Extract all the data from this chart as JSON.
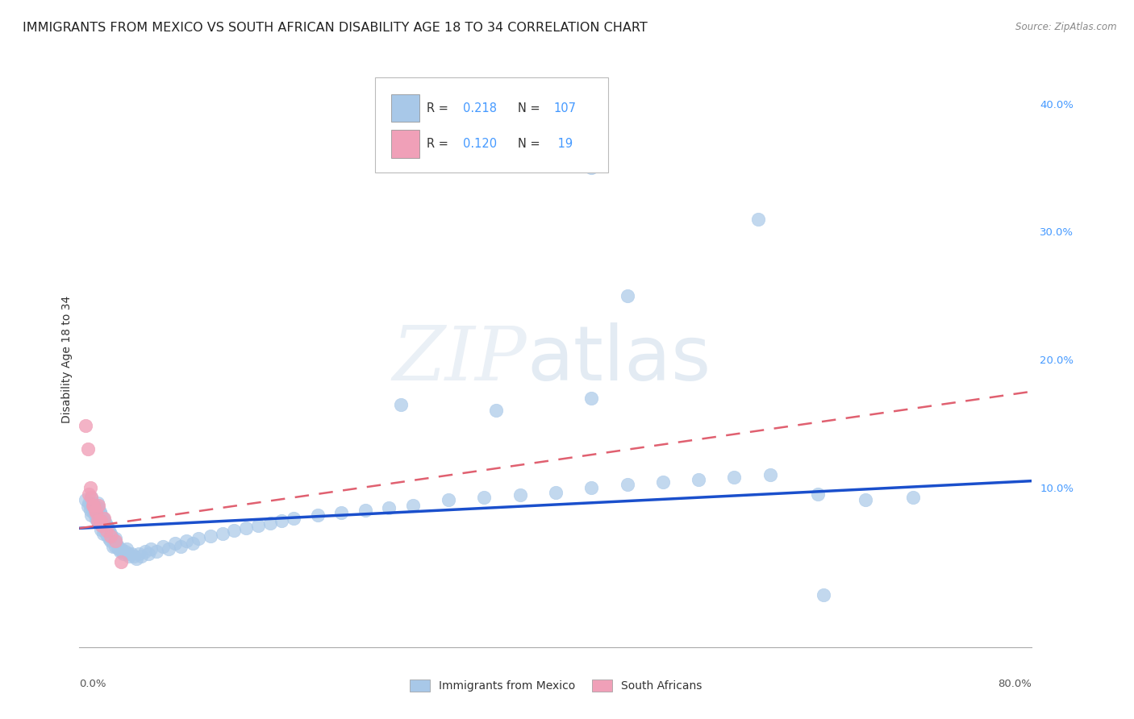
{
  "title": "IMMIGRANTS FROM MEXICO VS SOUTH AFRICAN DISABILITY AGE 18 TO 34 CORRELATION CHART",
  "source": "Source: ZipAtlas.com",
  "ylabel": "Disability Age 18 to 34",
  "yticks": [
    0.0,
    0.1,
    0.2,
    0.3,
    0.4
  ],
  "ytick_labels": [
    "",
    "10.0%",
    "20.0%",
    "30.0%",
    "40.0%"
  ],
  "xlim": [
    0.0,
    0.8
  ],
  "ylim": [
    -0.025,
    0.425
  ],
  "watermark": "ZIPatlas",
  "legend_label1": "Immigrants from Mexico",
  "legend_label2": "South Africans",
  "blue_scatter_color": "#a8c8e8",
  "pink_scatter_color": "#f0a0b8",
  "blue_line_color": "#1a4fcc",
  "pink_line_color": "#e06070",
  "blue_line_y0": 0.068,
  "blue_line_y1": 0.105,
  "pink_line_y0": 0.068,
  "pink_line_y1": 0.175,
  "grid_color": "#cccccc",
  "background_color": "#ffffff",
  "title_fontsize": 11.5,
  "axis_label_fontsize": 10,
  "tick_fontsize": 9.5,
  "blue_x": [
    0.005,
    0.007,
    0.008,
    0.009,
    0.01,
    0.01,
    0.01,
    0.011,
    0.012,
    0.012,
    0.013,
    0.013,
    0.014,
    0.014,
    0.015,
    0.015,
    0.015,
    0.016,
    0.016,
    0.017,
    0.017,
    0.018,
    0.018,
    0.018,
    0.019,
    0.019,
    0.02,
    0.02,
    0.02,
    0.021,
    0.021,
    0.022,
    0.022,
    0.023,
    0.023,
    0.024,
    0.024,
    0.025,
    0.025,
    0.026,
    0.026,
    0.027,
    0.028,
    0.028,
    0.029,
    0.03,
    0.03,
    0.031,
    0.032,
    0.033,
    0.034,
    0.035,
    0.036,
    0.037,
    0.038,
    0.04,
    0.041,
    0.042,
    0.044,
    0.046,
    0.048,
    0.05,
    0.052,
    0.055,
    0.058,
    0.06,
    0.065,
    0.07,
    0.075,
    0.08,
    0.085,
    0.09,
    0.095,
    0.1,
    0.11,
    0.12,
    0.13,
    0.14,
    0.15,
    0.16,
    0.17,
    0.18,
    0.2,
    0.22,
    0.24,
    0.26,
    0.28,
    0.31,
    0.34,
    0.37,
    0.4,
    0.43,
    0.46,
    0.49,
    0.52,
    0.55,
    0.58,
    0.62,
    0.66,
    0.7,
    0.43,
    0.57,
    0.46,
    0.625,
    0.43,
    0.35,
    0.27
  ],
  "blue_y": [
    0.09,
    0.085,
    0.088,
    0.082,
    0.092,
    0.086,
    0.078,
    0.083,
    0.087,
    0.08,
    0.085,
    0.078,
    0.082,
    0.075,
    0.088,
    0.081,
    0.074,
    0.084,
    0.077,
    0.081,
    0.073,
    0.079,
    0.073,
    0.067,
    0.077,
    0.07,
    0.076,
    0.07,
    0.064,
    0.074,
    0.067,
    0.072,
    0.065,
    0.07,
    0.063,
    0.068,
    0.062,
    0.066,
    0.06,
    0.064,
    0.058,
    0.062,
    0.06,
    0.054,
    0.058,
    0.06,
    0.054,
    0.056,
    0.054,
    0.052,
    0.05,
    0.052,
    0.05,
    0.048,
    0.05,
    0.052,
    0.048,
    0.046,
    0.048,
    0.046,
    0.044,
    0.048,
    0.046,
    0.05,
    0.048,
    0.052,
    0.05,
    0.054,
    0.052,
    0.056,
    0.054,
    0.058,
    0.056,
    0.06,
    0.062,
    0.064,
    0.066,
    0.068,
    0.07,
    0.072,
    0.074,
    0.076,
    0.078,
    0.08,
    0.082,
    0.084,
    0.086,
    0.09,
    0.092,
    0.094,
    0.096,
    0.1,
    0.102,
    0.104,
    0.106,
    0.108,
    0.11,
    0.095,
    0.09,
    0.092,
    0.35,
    0.31,
    0.25,
    0.016,
    0.17,
    0.16,
    0.165
  ],
  "pink_x": [
    0.005,
    0.007,
    0.008,
    0.009,
    0.01,
    0.011,
    0.012,
    0.013,
    0.014,
    0.015,
    0.016,
    0.017,
    0.018,
    0.019,
    0.021,
    0.023,
    0.026,
    0.03,
    0.035
  ],
  "pink_y": [
    0.148,
    0.13,
    0.095,
    0.1,
    0.092,
    0.086,
    0.086,
    0.082,
    0.08,
    0.074,
    0.086,
    0.074,
    0.074,
    0.07,
    0.076,
    0.066,
    0.062,
    0.058,
    0.042
  ]
}
